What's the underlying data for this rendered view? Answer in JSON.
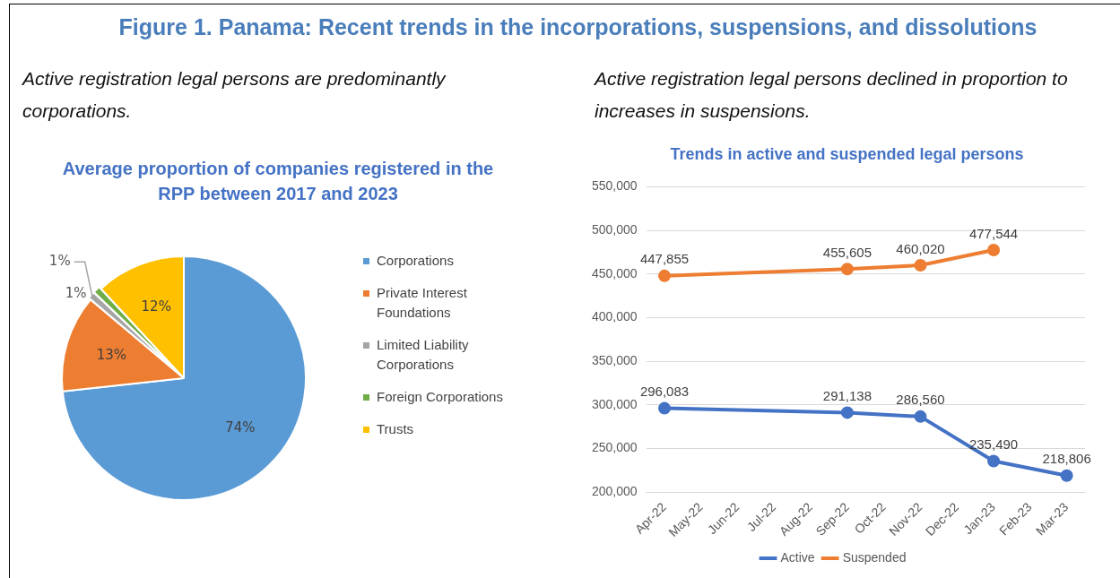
{
  "chart_data": [
    {
      "type": "pie",
      "title": "Average proportion of companies registered in the RPP between 2017 and 2023",
      "subtitle": "Active registration legal persons are predominantly corporations.",
      "annotations": [
        "Figure 1. Panama: Recent trends in the incorporations, suspensions, and dissolutions"
      ],
      "categories": [
        "Corporations",
        "Private Interest Foundations",
        "Limited Liability Corporations",
        "Foreign Corporations",
        "Trusts"
      ],
      "values": [
        74,
        13,
        1,
        1,
        12
      ],
      "value_labels": [
        "74%",
        "13%",
        "1%",
        "1%",
        "12%"
      ],
      "colors": [
        "#5b9bd5",
        "#ed7d31",
        "#a5a5a5",
        "#70ad47",
        "#ffc000"
      ],
      "legend": "right"
    },
    {
      "type": "line",
      "title": "Trends in active and suspended legal persons",
      "subtitle": "Active registration legal persons declined in proportion to increases in suspensions.",
      "categories": [
        "Apr-22",
        "May-22",
        "Jun-22",
        "Jul-22",
        "Aug-22",
        "Sep-22",
        "Oct-22",
        "Nov-22",
        "Dec-22",
        "Jan-23",
        "Feb-23",
        "Mar-23"
      ],
      "series": [
        {
          "name": "Active",
          "color": "#4472c4",
          "values": [
            296083,
            null,
            null,
            null,
            null,
            291138,
            null,
            286560,
            null,
            235490,
            null,
            218806
          ],
          "value_labels": [
            "296,083",
            null,
            null,
            null,
            null,
            "291,138",
            null,
            "286,560",
            null,
            "235,490",
            null,
            "218,806"
          ]
        },
        {
          "name": "Suspended",
          "color": "#ed7d31",
          "values": [
            447855,
            null,
            null,
            null,
            null,
            455605,
            null,
            460020,
            null,
            477544,
            null,
            null
          ],
          "value_labels": [
            "447,855",
            null,
            null,
            null,
            null,
            "455,605",
            null,
            "460,020",
            null,
            "477,544",
            null,
            null
          ]
        }
      ],
      "ylim": [
        200000,
        550000
      ],
      "yticks": [
        {
          "value": 200000,
          "label": "200,000"
        },
        {
          "value": 250000,
          "label": "250,000"
        },
        {
          "value": 300000,
          "label": "300,000"
        },
        {
          "value": 350000,
          "label": "350,000"
        },
        {
          "value": 400000,
          "label": "400,000"
        },
        {
          "value": 450000,
          "label": "450,000"
        },
        {
          "value": 500000,
          "label": "500,000"
        },
        {
          "value": 550000,
          "label": "550,000"
        }
      ],
      "grid": "y",
      "legend": "bottom",
      "marker": "circle",
      "line_style": "solid"
    }
  ]
}
